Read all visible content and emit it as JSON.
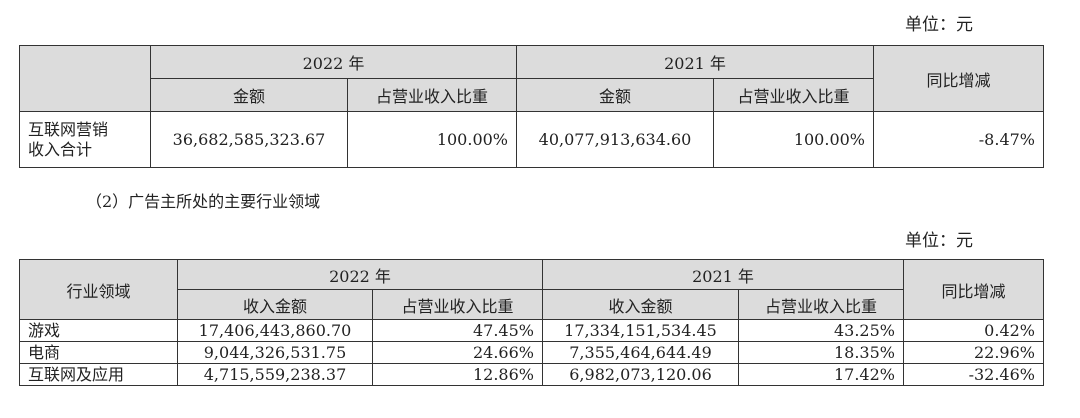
{
  "table1": {
    "unit": "单位：元",
    "year1": "2022 年",
    "year2": "2021 年",
    "col_amount": "金额",
    "col_ratio": "占营业收入比重",
    "col_yoy": "同比增减",
    "row_label_line1": "互联网营销",
    "row_label_line2": "收入合计",
    "amount_2022": "36,682,585,323.67",
    "ratio_2022": "100.00%",
    "amount_2021": "40,077,913,634.60",
    "ratio_2021": "100.00%",
    "yoy": "-8.47%"
  },
  "caption": "（2）广告主所处的主要行业领域",
  "table2": {
    "unit": "单位：元",
    "col_industry": "行业领域",
    "year1": "2022 年",
    "year2": "2021 年",
    "col_amount": "收入金额",
    "col_ratio": "占营业收入比重",
    "col_yoy": "同比增减",
    "rows": [
      {
        "industry": "游戏",
        "amount_2022": "17,406,443,860.70",
        "ratio_2022": "47.45%",
        "amount_2021": "17,334,151,534.45",
        "ratio_2021": "43.25%",
        "yoy": "0.42%"
      },
      {
        "industry": "电商",
        "amount_2022": "9,044,326,531.75",
        "ratio_2022": "24.66%",
        "amount_2021": "7,355,464,644.49",
        "ratio_2021": "18.35%",
        "yoy": "22.96%"
      },
      {
        "industry": "互联网及应用",
        "amount_2022": "4,715,559,238.37",
        "ratio_2022": "12.86%",
        "amount_2021": "6,982,073,120.06",
        "ratio_2021": "17.42%",
        "yoy": "-32.46%"
      }
    ]
  }
}
